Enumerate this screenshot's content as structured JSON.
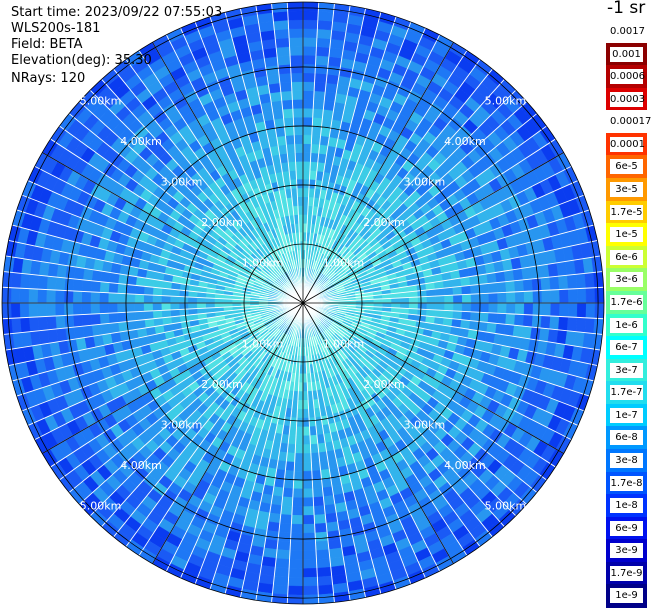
{
  "header": {
    "start_time": "Start time: 2023/09/22 07:55:03",
    "instrument": "WLS200s-181",
    "field": "Field: BETA",
    "elevation": "Elevation(deg): 35.30",
    "nrays": "NRays: 120"
  },
  "colorbar": {
    "title": "-1 sr",
    "labels": [
      "0.0017",
      "0.001",
      "0.0006",
      "0.0003",
      "0.00017",
      "0.0001",
      "6e-5",
      "3e-5",
      "1.7e-5",
      "1e-5",
      "6e-6",
      "3e-6",
      "1.7e-6",
      "1e-6",
      "6e-7",
      "3e-7",
      "1.7e-7",
      "1e-7",
      "6e-8",
      "3e-8",
      "1.7e-8",
      "1e-8",
      "6e-9",
      "3e-9",
      "1.7e-9",
      "1e-9"
    ],
    "colors": [
      "#ffffff",
      "#8b0000",
      "#b40000",
      "#dc0000",
      "#ffffff",
      "#ff3300",
      "#ff6600",
      "#ff9900",
      "#ffcc00",
      "#ffff00",
      "#ccff33",
      "#99ff66",
      "#66ff99",
      "#33ffcc",
      "#00ffff",
      "#33eedd",
      "#22ddee",
      "#00ccff",
      "#0099ff",
      "#0077ff",
      "#0055ff",
      "#0033ff",
      "#0011ee",
      "#0000cc",
      "#0000aa",
      "#000088"
    ]
  },
  "chart_data": {
    "type": "heatmap",
    "projection": "polar (PPI)",
    "rays": 120,
    "range_rings_km": [
      1,
      2,
      3,
      4,
      5
    ],
    "range_labels": [
      "1.00km",
      "2.00km",
      "3.00km",
      "4.00km",
      "5.00km"
    ],
    "spoke_angles_deg": [
      0,
      30,
      60,
      90,
      120,
      150,
      180,
      210,
      240,
      270,
      300,
      330
    ],
    "max_range_km": 5.1,
    "field_levels_by_range": [
      {
        "range_km": 0.5,
        "value": "6e-7"
      },
      {
        "range_km": 1.5,
        "value": "3e-7"
      },
      {
        "range_km": 2.5,
        "value": "1.7e-7"
      },
      {
        "range_km": 3.5,
        "value": "6e-8"
      },
      {
        "range_km": 4.5,
        "value": "3e-8"
      }
    ]
  }
}
